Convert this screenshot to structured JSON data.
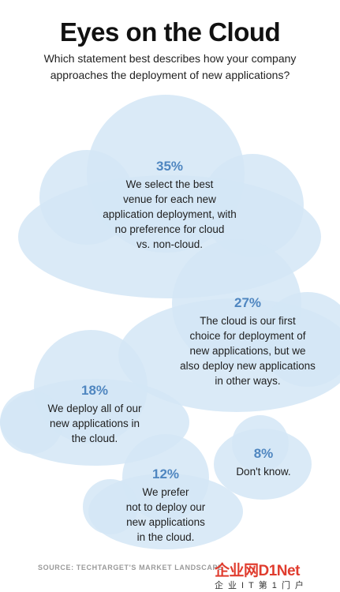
{
  "colors": {
    "cloud_fill": "#d3e6f6",
    "cloud_overlap": "#bed8ef",
    "percent": "#4f86c0"
  },
  "chart_data": {
    "type": "bubble-infographic",
    "title": "Eyes on the Cloud",
    "subtitle": "Which statement best describes how your company approaches the deployment of new applications?",
    "series": [
      {
        "value": 35,
        "label": "35%",
        "text": "We select the best venue for each new application deployment, with no preference for cloud vs. non-cloud."
      },
      {
        "value": 27,
        "label": "27%",
        "text": "The cloud is our first choice for deployment of new applications, but we also deploy new applications in other ways."
      },
      {
        "value": 18,
        "label": "18%",
        "text": "We deploy all of our new applications in the cloud."
      },
      {
        "value": 12,
        "label": "12%",
        "text": "We prefer not to deploy our new applications in the cloud."
      },
      {
        "value": 8,
        "label": "8%",
        "text": "Don't know."
      }
    ],
    "display_lines": [
      "We select the best\nvenue for each new\napplication deployment, with\nno preference for cloud\nvs. non-cloud.",
      "The cloud is our first\nchoice for deployment of\nnew applications, but we\nalso deploy new applications\nin other ways.",
      "We deploy all of our\nnew applications in\nthe cloud.",
      "We prefer\nnot to deploy our\nnew applications\nin the cloud.",
      "Don't know."
    ]
  },
  "source": "SOURCE: TECHTARGET'S MARKET LANDSCAPE",
  "brand": {
    "name": "企业网D1Net",
    "tagline": "企业IT第1门户"
  }
}
